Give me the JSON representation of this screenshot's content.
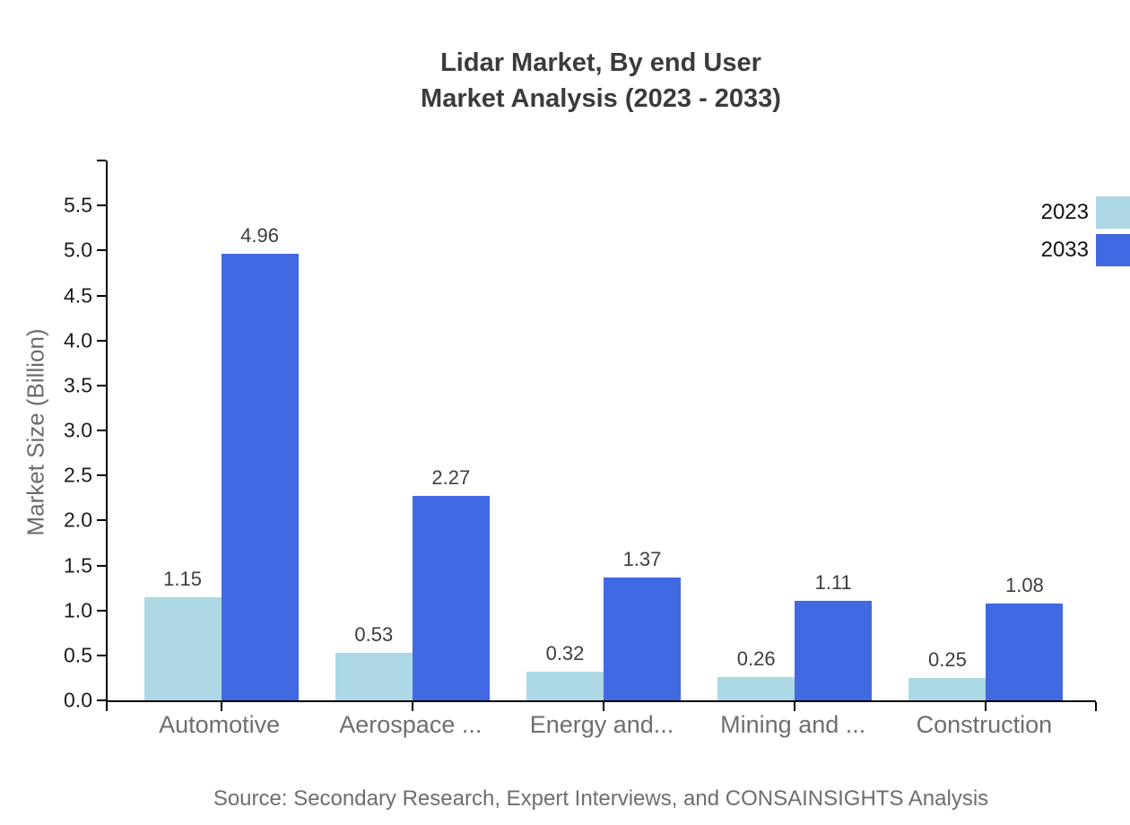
{
  "title": {
    "line1": "Lidar Market, By end User",
    "line2": "Market Analysis (2023 - 2033)"
  },
  "source_note": "Source: Secondary Research, Expert Interviews, and CONSAINSIGHTS Analysis",
  "colors": {
    "series_2023": "#ADD8E6",
    "series_2033": "#4169E1",
    "axis": "#000000",
    "title_text": "#3b3b3b",
    "muted_text": "#6e6e6e",
    "value_label_text": "#3d3d3d"
  },
  "chart_data": {
    "type": "bar",
    "title": "Lidar Market, By end User Market Analysis (2023 - 2033)",
    "categories": [
      "Automotive",
      "Aerospace ...",
      "Energy and...",
      "Mining and ...",
      "Construction"
    ],
    "series": [
      {
        "name": "2023",
        "color": "#ADD8E6",
        "values": [
          1.15,
          0.53,
          0.32,
          0.26,
          0.25
        ]
      },
      {
        "name": "2033",
        "color": "#4169E1",
        "values": [
          4.96,
          2.27,
          1.37,
          1.11,
          1.08
        ]
      }
    ],
    "xlabel": "",
    "ylabel": "Market Size (Billion)",
    "ylim": [
      0,
      6
    ],
    "yticks_labeled": [
      0.0,
      0.5,
      1.0,
      1.5,
      2.0,
      2.5,
      3.0,
      3.5,
      4.0,
      4.5,
      5.0,
      5.5
    ],
    "yticks_unlabeled": [
      6.0
    ],
    "grid": false,
    "value_labels": true,
    "legend_position": "top-right",
    "legend": [
      {
        "label": "2023",
        "color": "#ADD8E6"
      },
      {
        "label": "2033",
        "color": "#4169E1"
      }
    ]
  }
}
